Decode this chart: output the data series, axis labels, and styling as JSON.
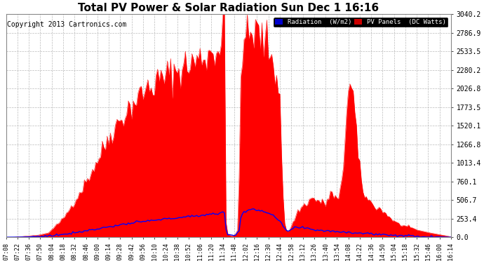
{
  "title": "Total PV Power & Solar Radiation Sun Dec 1 16:16",
  "copyright": "Copyright 2013 Cartronics.com",
  "yticks": [
    0.0,
    253.4,
    506.7,
    760.1,
    1013.4,
    1266.8,
    1520.1,
    1773.5,
    2026.8,
    2280.2,
    2533.5,
    2786.9,
    3040.2
  ],
  "ymax": 3040.2,
  "ymin": 0.0,
  "bg_color": "#ffffff",
  "plot_bg_color": "#ffffff",
  "grid_color": "#bbbbbb",
  "pv_color": "#ff0000",
  "radiation_color": "#0000ff",
  "legend_radiation_bg": "#0000cc",
  "legend_pv_bg": "#cc0000",
  "title_fontsize": 11,
  "copyright_fontsize": 7,
  "xtick_fontsize": 6,
  "ytick_fontsize": 7
}
